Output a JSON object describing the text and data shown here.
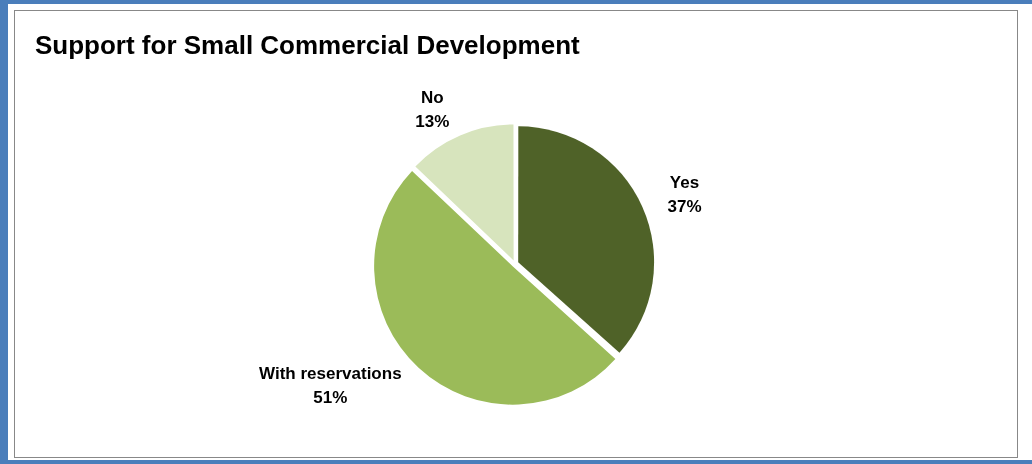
{
  "chart_data": {
    "type": "pie",
    "title": "Support for Small Commercial Development",
    "categories": [
      "Yes",
      "With reservations",
      "No"
    ],
    "values": [
      37,
      51,
      13
    ],
    "value_labels": [
      "37%",
      "51%",
      "13%"
    ],
    "colors": [
      "#4f6228",
      "#9bbb59",
      "#d7e4bd"
    ],
    "legend": false
  }
}
